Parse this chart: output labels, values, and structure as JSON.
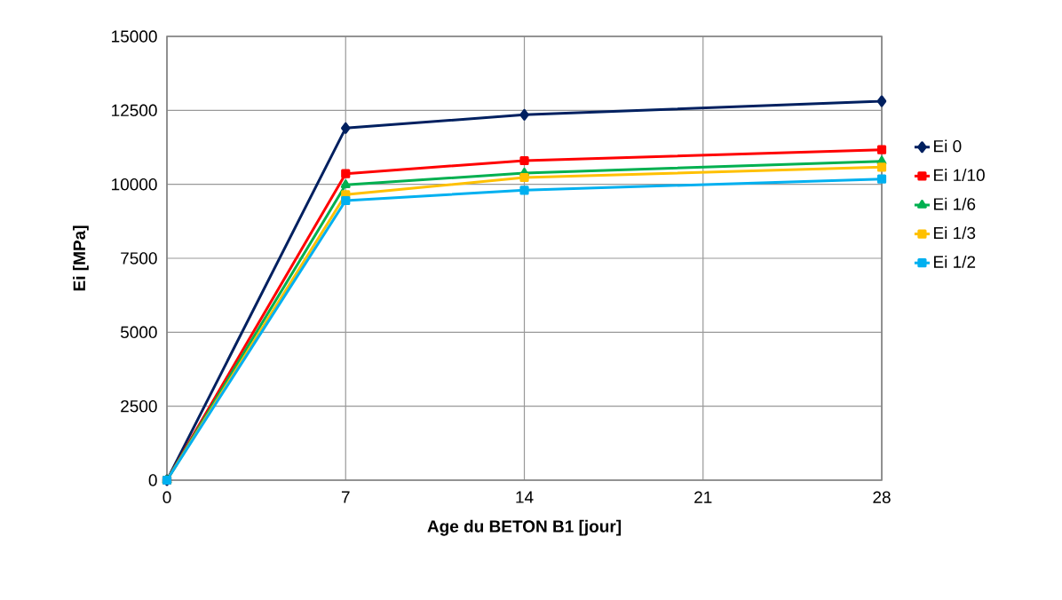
{
  "chart_data": {
    "type": "line",
    "xlabel": "Age du BETON B1 [jour]",
    "ylabel": "Ei [MPa]",
    "x": [
      0,
      7,
      14,
      28
    ],
    "series": [
      {
        "name": "Ei 0",
        "color": "#002060",
        "marker": "diamond",
        "values": [
          0,
          11900,
          12350,
          12810
        ]
      },
      {
        "name": "Ei 1/10",
        "color": "#ff0000",
        "marker": "square",
        "values": [
          0,
          10360,
          10800,
          11170
        ]
      },
      {
        "name": "Ei 1/6",
        "color": "#00b050",
        "marker": "triangle",
        "values": [
          0,
          9980,
          10380,
          10780
        ]
      },
      {
        "name": "Ei 1/3",
        "color": "#ffc000",
        "marker": "square",
        "values": [
          0,
          9650,
          10230,
          10580
        ]
      },
      {
        "name": "Ei 1/2",
        "color": "#00b0f0",
        "marker": "square",
        "values": [
          0,
          9450,
          9800,
          10180
        ]
      }
    ],
    "xlim": [
      0,
      28
    ],
    "xticks": [
      0,
      7,
      14,
      21,
      28
    ],
    "ylim": [
      0,
      15000
    ],
    "yticks": [
      0,
      2500,
      5000,
      7500,
      10000,
      12500,
      15000
    ],
    "grid": true,
    "legend": "right"
  }
}
